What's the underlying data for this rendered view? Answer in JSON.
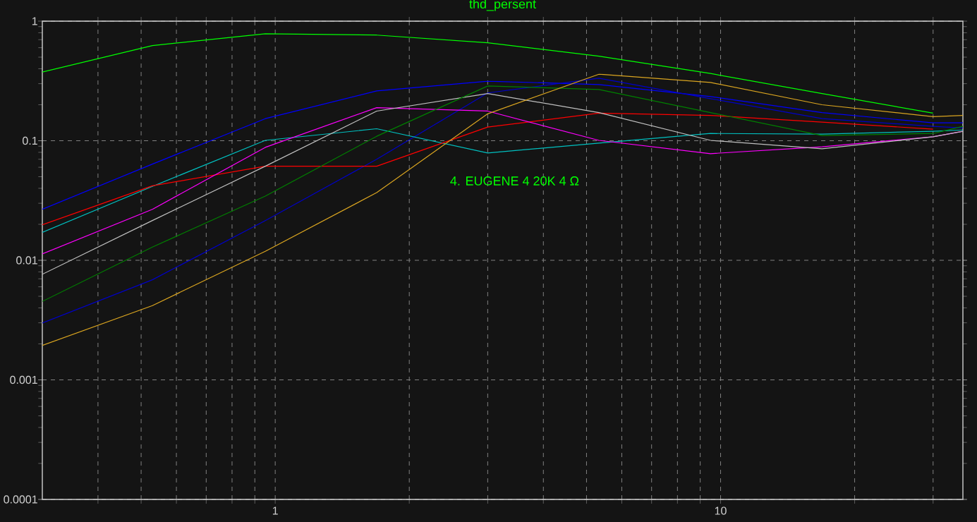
{
  "chart_data": {
    "type": "line",
    "title": "thd_persent",
    "annotations": [
      "4. EUGENE 4     20K   4 Ω"
    ],
    "x": [
      0.3,
      0.53,
      0.95,
      1.69,
      3,
      5.33,
      9.49,
      16.9,
      30,
      35
    ],
    "series": [
      {
        "color": "#00ff00",
        "values": [
          0.375,
          0.625,
          0.785,
          0.765,
          0.66,
          0.51,
          0.365,
          0.248,
          0.17,
          null
        ]
      },
      {
        "color": "#0000ff",
        "values": [
          0.0267,
          0.0638,
          0.153,
          0.261,
          0.315,
          0.295,
          0.234,
          0.172,
          0.141,
          0.141
        ]
      },
      {
        "color": "#0000c8",
        "values": [
          0.00299,
          0.00687,
          0.0215,
          0.07,
          0.251,
          0.333,
          0.225,
          0.153,
          0.132,
          0.128
        ]
      },
      {
        "color": "#00c0c0",
        "values": [
          0.0171,
          0.0415,
          0.1007,
          0.126,
          0.079,
          0.0955,
          0.115,
          0.1136,
          0.12,
          0.123
        ]
      },
      {
        "color": "#ff0000",
        "values": [
          0.0198,
          0.042,
          0.0612,
          0.0612,
          0.13,
          0.17,
          0.163,
          0.143,
          0.125,
          null
        ]
      },
      {
        "color": "#ff00ff",
        "values": [
          0.0113,
          0.0267,
          0.088,
          0.189,
          0.177,
          0.1007,
          0.078,
          0.089,
          0.108,
          0.12
        ]
      },
      {
        "color": "#c0c0c0",
        "values": [
          0.00764,
          0.0215,
          0.0612,
          0.177,
          0.248,
          0.172,
          0.1007,
          0.0857,
          0.108,
          0.12
        ]
      },
      {
        "color": "#008000",
        "values": [
          0.00453,
          0.0129,
          0.0344,
          0.109,
          0.287,
          0.268,
          0.172,
          0.1106,
          0.115,
          0.132
        ]
      },
      {
        "color": "#daa520",
        "values": [
          0.00194,
          0.00418,
          0.0119,
          0.0368,
          0.168,
          0.36,
          0.307,
          0.2,
          0.159,
          0.163
        ]
      }
    ],
    "xlim": [
      0.3,
      35
    ],
    "ylim": [
      0.0001,
      1
    ],
    "log": "xy",
    "grid": true,
    "xticks": [
      {
        "value": 0.4,
        "label": null
      },
      {
        "value": 0.5,
        "label": null
      },
      {
        "value": 0.6,
        "label": null
      },
      {
        "value": 0.7,
        "label": null
      },
      {
        "value": 0.8,
        "label": null
      },
      {
        "value": 0.9,
        "label": null
      },
      1,
      {
        "value": 2,
        "label": null
      },
      {
        "value": 3,
        "label": null
      },
      {
        "value": 4,
        "label": null
      },
      {
        "value": 5,
        "label": null
      },
      {
        "value": 6,
        "label": null
      },
      {
        "value": 7,
        "label": null
      },
      {
        "value": 8,
        "label": null
      },
      {
        "value": 9,
        "label": null
      },
      10,
      {
        "value": 20,
        "label": null
      },
      {
        "value": 30,
        "label": null
      }
    ],
    "yticks": [
      0.0001,
      0.001,
      0.01,
      0.1,
      1
    ]
  }
}
